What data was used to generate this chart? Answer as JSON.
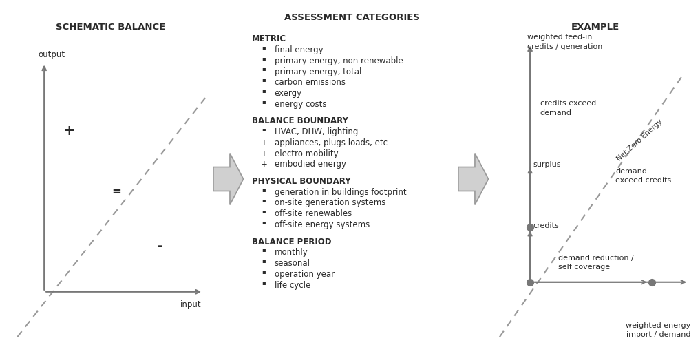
{
  "bg_color": "#ffffff",
  "text_color": "#2a2a2a",
  "axis_color": "#777777",
  "dashed_color": "#999999",
  "dot_color": "#777777",
  "title1": "SCHEMATIC BALANCE",
  "title2": "ASSESSMENT CATEGORIES",
  "title3": "EXAMPLE",
  "section1_labels": {
    "output": "output",
    "input": "input",
    "plus": "+",
    "equals": "=",
    "minus": "-"
  },
  "section2_content": [
    {
      "type": "heading",
      "text": "METRIC"
    },
    {
      "type": "bullet",
      "text": "final energy"
    },
    {
      "type": "bullet",
      "text": "primary energy, non renewable"
    },
    {
      "type": "bullet",
      "text": "primary energy, total"
    },
    {
      "type": "bullet",
      "text": "carbon emissions"
    },
    {
      "type": "bullet",
      "text": "exergy"
    },
    {
      "type": "bullet",
      "text": "energy costs"
    },
    {
      "type": "gap"
    },
    {
      "type": "heading",
      "text": "BALANCE BOUNDARY"
    },
    {
      "type": "bullet",
      "text": "HVAC, DHW, lighting"
    },
    {
      "type": "plus",
      "text": "appliances, plugs loads, etc."
    },
    {
      "type": "plus",
      "text": "electro mobility"
    },
    {
      "type": "plus",
      "text": "embodied energy"
    },
    {
      "type": "gap"
    },
    {
      "type": "heading",
      "text": "PHYSICAL BOUNDARY"
    },
    {
      "type": "bullet",
      "text": "generation in buildings footprint"
    },
    {
      "type": "bullet",
      "text": "on-site generation systems"
    },
    {
      "type": "bullet",
      "text": "off-site renewables"
    },
    {
      "type": "bullet",
      "text": "off-site energy systems"
    },
    {
      "type": "gap"
    },
    {
      "type": "heading",
      "text": "BALANCE PERIOD"
    },
    {
      "type": "bullet",
      "text": "monthly"
    },
    {
      "type": "bullet",
      "text": "seasonal"
    },
    {
      "type": "bullet",
      "text": "operation year"
    },
    {
      "type": "bullet",
      "text": "life cycle"
    }
  ],
  "section3_labels": {
    "y_axis": "weighted feed-in\ncredits / generation",
    "x_axis": "weighted energy\nimport / demand",
    "credits_exceed": "credits exceed\ndemand",
    "demand_exceed": "demand\nexceed credits",
    "surplus": "surplus",
    "credits": "credits",
    "demand_reduction": "demand reduction /\nself coverage",
    "nze_label": "Net Zero Energy"
  }
}
